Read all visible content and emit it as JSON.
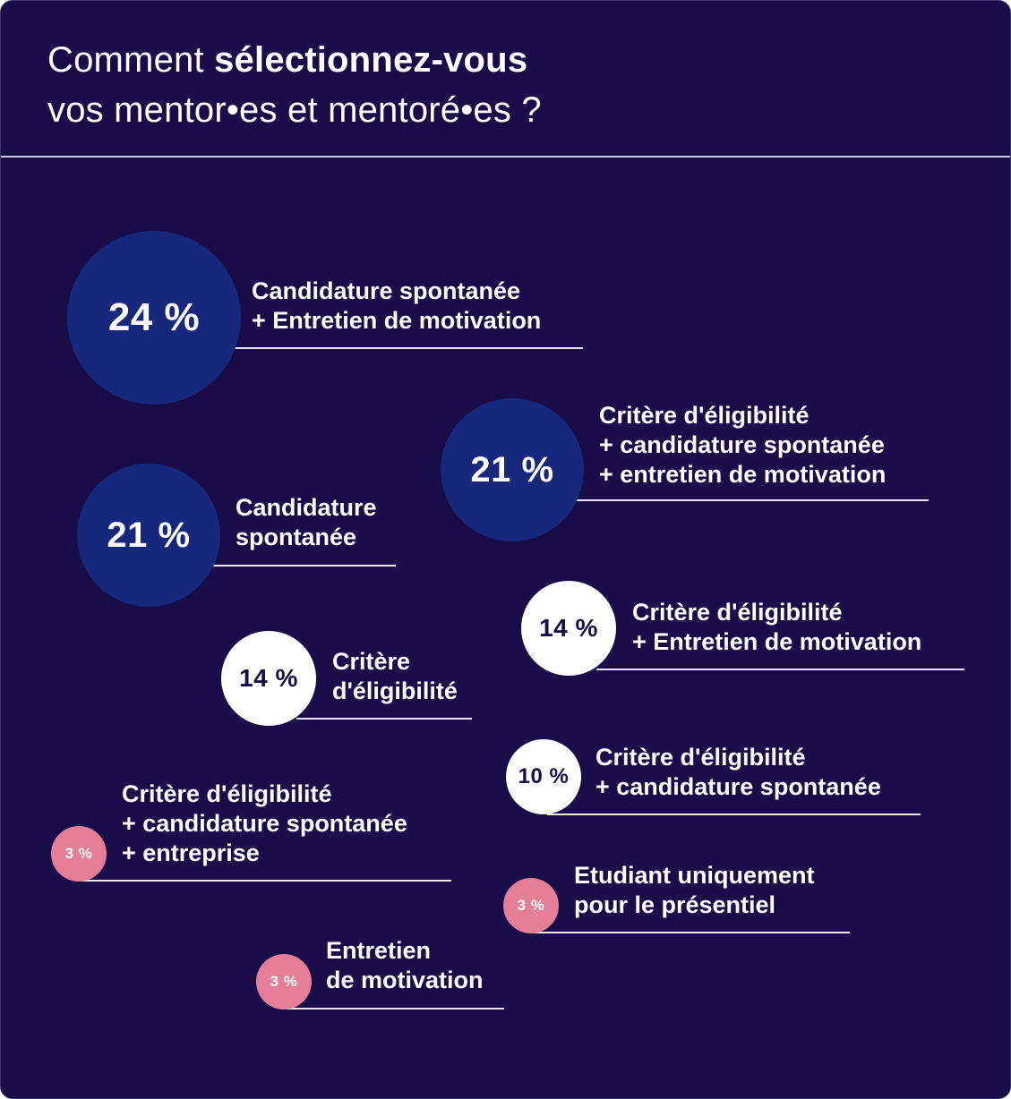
{
  "title": {
    "line1_light": "Comment",
    "line1_bold": "sélectionnez-vous",
    "line2": "vos mentor•es et mentoré•es  ?"
  },
  "colors": {
    "background": "#180d48",
    "bubble_large": "#17287c",
    "bubble_medium": "#ffffff",
    "bubble_small": "#e57e97"
  },
  "chart_data": {
    "type": "bubble",
    "unit": "%",
    "items": [
      {
        "value": 24,
        "display": "24 %",
        "label_lines": [
          "Candidature spontanée",
          "+ Entretien de motivation"
        ]
      },
      {
        "value": 21,
        "display": "21 %",
        "label_lines": [
          "Critère d'éligibilité",
          "+ candidature spontanée",
          "+ entretien de motivation"
        ]
      },
      {
        "value": 21,
        "display": "21 %",
        "label_lines": [
          "Candidature",
          "spontanée"
        ]
      },
      {
        "value": 14,
        "display": "14 %",
        "label_lines": [
          "Critère d'éligibilité",
          "+ Entretien de motivation"
        ]
      },
      {
        "value": 14,
        "display": "14 %",
        "label_lines": [
          "Critère",
          "d'éligibilité"
        ]
      },
      {
        "value": 10,
        "display": "10 %",
        "label_lines": [
          "Critère d'éligibilité",
          "+ candidature spontanée"
        ]
      },
      {
        "value": 3,
        "display": "3 %",
        "label_lines": [
          "Critère d'éligibilité",
          "+ candidature spontanée",
          "+ entreprise"
        ]
      },
      {
        "value": 3,
        "display": "3 %",
        "label_lines": [
          "Etudiant uniquement",
          "pour le présentiel"
        ]
      },
      {
        "value": 3,
        "display": "3 %",
        "label_lines": [
          "Entretien",
          "de motivation"
        ]
      }
    ]
  }
}
